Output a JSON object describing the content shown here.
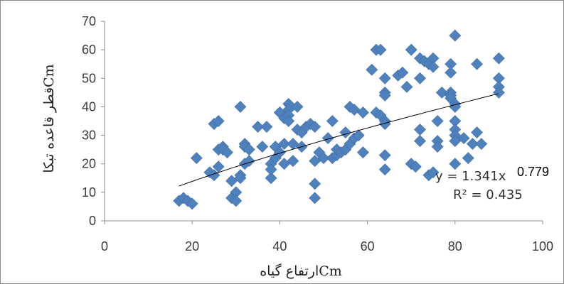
{
  "chart_data": {
    "type": "scatter",
    "xlabel": "ارتفاع گیاهCm",
    "ylabel": "قطر قاعده تبکاCm",
    "xlim": [
      0,
      100
    ],
    "ylim": [
      0,
      70
    ],
    "x_ticks": [
      "0",
      "20",
      "40",
      "60",
      "80",
      "100"
    ],
    "y_ticks": [
      "0",
      "10",
      "20",
      "30",
      "40",
      "50",
      "60",
      "70"
    ],
    "grid": false,
    "marker": "diamond",
    "marker_color": "#4f81bd",
    "trendline": {
      "type": "power",
      "x_range": [
        17,
        90
      ],
      "equation": "y = 1.341x",
      "exponent": "0.779",
      "r2": "R² = 0.435"
    },
    "points": [
      [
        17,
        7
      ],
      [
        18,
        8
      ],
      [
        19,
        7
      ],
      [
        20,
        6
      ],
      [
        21,
        22
      ],
      [
        24,
        17
      ],
      [
        25,
        34
      ],
      [
        25,
        16
      ],
      [
        26,
        35
      ],
      [
        26,
        19
      ],
      [
        26,
        25
      ],
      [
        27,
        26
      ],
      [
        27,
        25
      ],
      [
        28,
        24
      ],
      [
        29,
        14
      ],
      [
        29,
        8
      ],
      [
        30,
        10
      ],
      [
        30,
        7
      ],
      [
        31,
        16
      ],
      [
        31,
        15
      ],
      [
        31,
        40
      ],
      [
        32,
        20
      ],
      [
        32,
        27
      ],
      [
        32,
        26
      ],
      [
        33,
        25
      ],
      [
        33,
        21
      ],
      [
        35,
        33
      ],
      [
        36,
        26
      ],
      [
        37,
        33
      ],
      [
        38,
        15
      ],
      [
        38,
        20
      ],
      [
        38,
        18
      ],
      [
        39,
        26
      ],
      [
        39,
        22
      ],
      [
        40,
        24
      ],
      [
        40,
        38
      ],
      [
        40,
        38
      ],
      [
        41,
        27
      ],
      [
        41,
        36
      ],
      [
        41,
        20
      ],
      [
        42,
        41
      ],
      [
        42,
        39
      ],
      [
        42,
        37
      ],
      [
        42,
        35
      ],
      [
        43,
        27
      ],
      [
        43,
        21
      ],
      [
        44,
        40
      ],
      [
        44,
        32
      ],
      [
        45,
        26
      ],
      [
        45,
        31
      ],
      [
        46,
        33
      ],
      [
        47,
        34
      ],
      [
        48,
        33
      ],
      [
        48,
        21
      ],
      [
        48,
        13
      ],
      [
        48,
        8
      ],
      [
        49,
        24
      ],
      [
        50,
        22
      ],
      [
        51,
        29
      ],
      [
        52,
        35
      ],
      [
        52,
        22
      ],
      [
        53,
        23
      ],
      [
        53,
        25
      ],
      [
        54,
        24
      ],
      [
        55,
        31
      ],
      [
        55,
        25
      ],
      [
        56,
        40
      ],
      [
        56,
        27
      ],
      [
        57,
        39
      ],
      [
        57,
        29
      ],
      [
        58,
        30
      ],
      [
        59,
        38
      ],
      [
        59,
        24
      ],
      [
        61,
        53
      ],
      [
        62,
        60
      ],
      [
        62,
        38
      ],
      [
        63,
        37
      ],
      [
        63,
        60
      ],
      [
        64,
        50
      ],
      [
        64,
        45
      ],
      [
        64,
        44
      ],
      [
        64,
        35
      ],
      [
        64,
        34
      ],
      [
        64,
        23
      ],
      [
        64,
        18
      ],
      [
        67,
        51
      ],
      [
        68,
        52
      ],
      [
        69,
        47
      ],
      [
        70,
        60
      ],
      [
        70,
        20
      ],
      [
        71,
        19
      ],
      [
        72,
        57
      ],
      [
        72,
        50
      ],
      [
        72,
        32
      ],
      [
        72,
        28
      ],
      [
        73,
        56
      ],
      [
        74,
        55
      ],
      [
        74,
        16
      ],
      [
        75,
        57
      ],
      [
        75,
        54
      ],
      [
        75,
        17
      ],
      [
        76,
        35
      ],
      [
        76,
        28
      ],
      [
        76,
        26
      ],
      [
        77,
        45
      ],
      [
        79,
        52
      ],
      [
        79,
        55
      ],
      [
        79,
        45
      ],
      [
        79,
        44
      ],
      [
        79,
        43
      ],
      [
        80,
        65
      ],
      [
        80,
        41
      ],
      [
        80,
        40
      ],
      [
        80,
        35
      ],
      [
        80,
        32
      ],
      [
        80,
        30
      ],
      [
        80,
        28
      ],
      [
        80,
        20
      ],
      [
        82,
        29
      ],
      [
        83,
        22
      ],
      [
        84,
        27
      ],
      [
        85,
        55
      ],
      [
        85,
        31
      ],
      [
        86,
        27
      ],
      [
        90,
        57
      ],
      [
        90,
        50
      ],
      [
        90,
        47
      ],
      [
        90,
        45
      ]
    ]
  }
}
